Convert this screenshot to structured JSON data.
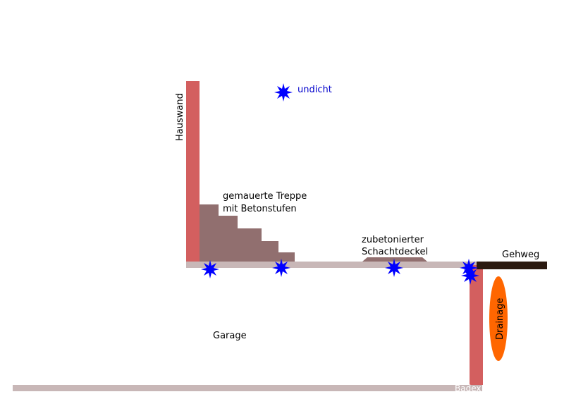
{
  "labels": {
    "hauswand": "Hauswand",
    "undicht": "undicht",
    "treppe_line1": "gemauerte Treppe",
    "treppe_line2": "mit Betonstufen",
    "schacht_line1": "zubetonierter",
    "schacht_line2": "Schachtdeckel",
    "gehweg": "Gehweg",
    "drainage": "Drainage",
    "garage": "Garage",
    "badex": "Badex"
  },
  "colors": {
    "wall": "#d35f5f",
    "slab": "#c8b7b7",
    "stairs": "#916f6f",
    "walkway": "#2b1a10",
    "drainage": "#ff6600",
    "leak_star": "#0000ff",
    "legend_text": "#0000cc",
    "text": "#000000"
  },
  "legend": {
    "leak_marker_icon": "blue-star-icon"
  }
}
